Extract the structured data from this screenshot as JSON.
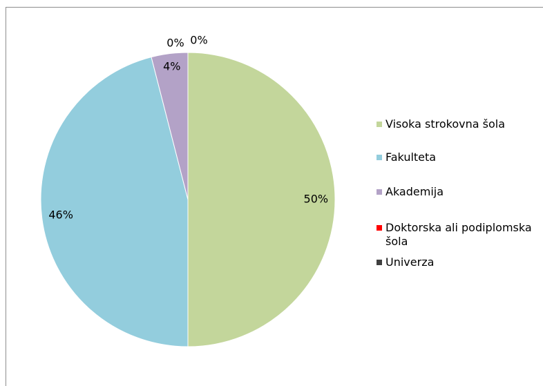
{
  "chart_data": {
    "type": "pie",
    "categories": [
      "Visoka strokovna šola",
      "Fakulteta",
      "Akademija",
      "Doktorska ali podiplomska šola",
      "Univerza"
    ],
    "values": [
      50,
      46,
      4,
      0,
      0
    ],
    "value_labels": [
      "50%",
      "46%",
      "4%",
      "0%",
      "0%"
    ],
    "colors": [
      "#c3d69b",
      "#93cddd",
      "#b3a2c7",
      "#ff0000",
      "#404040"
    ],
    "legend": "right"
  }
}
